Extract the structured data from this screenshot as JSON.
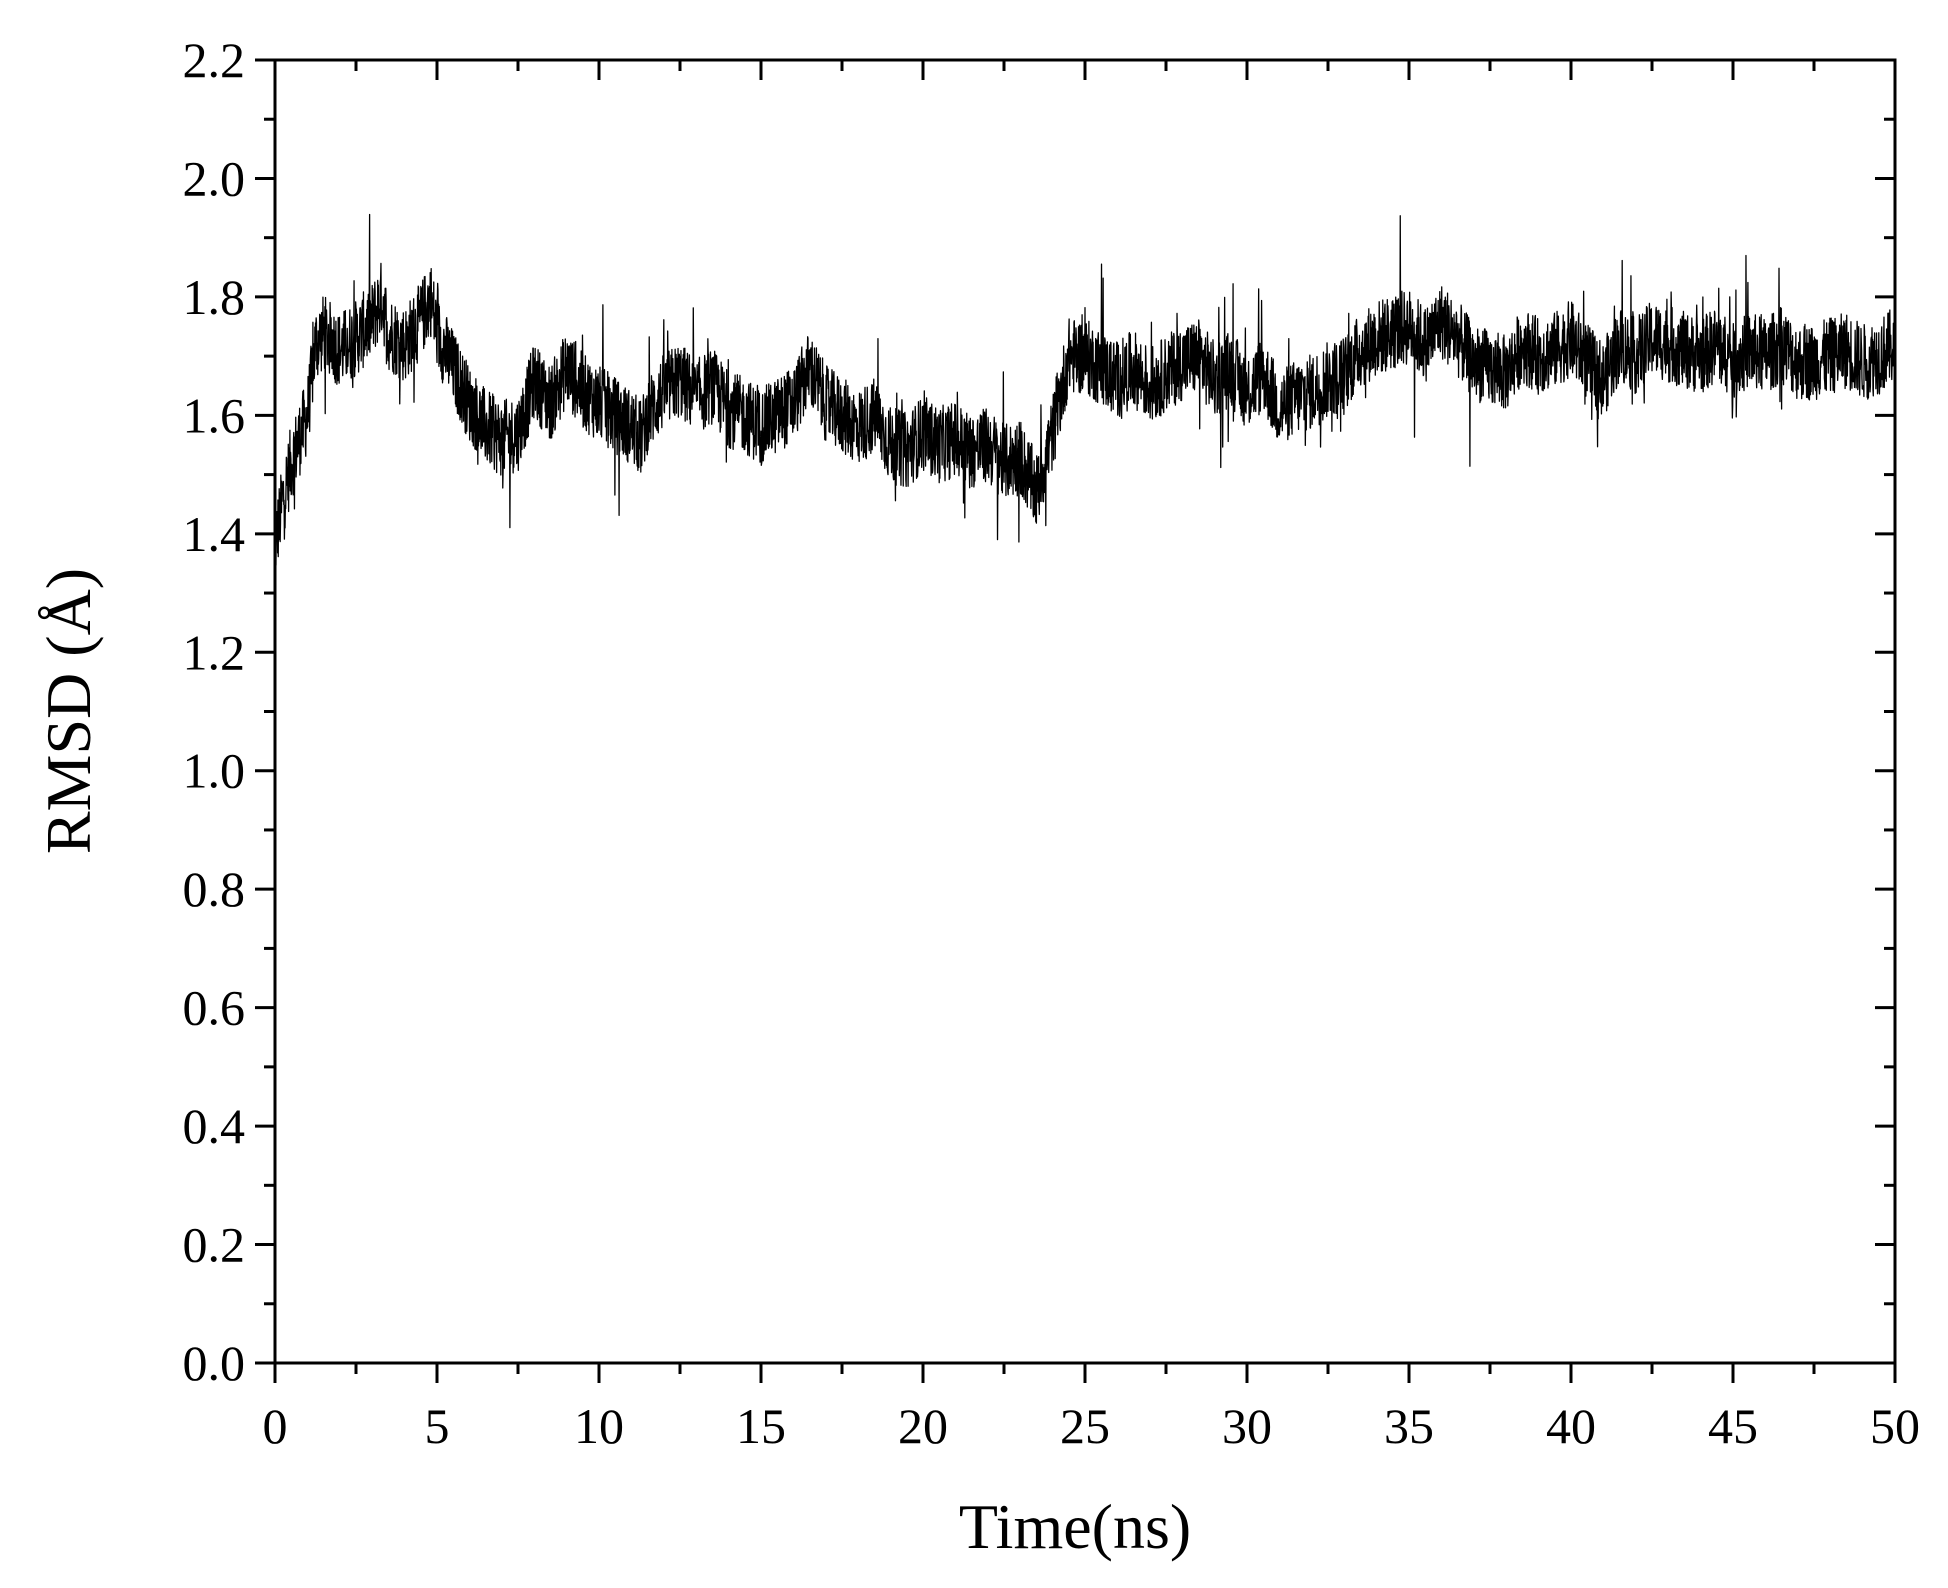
{
  "chart_data": {
    "type": "line",
    "xlabel": "Time(ns)",
    "ylabel": "RMSD (Å)",
    "xlim": [
      0,
      50
    ],
    "ylim": [
      0.0,
      2.2
    ],
    "x_ticks": [
      "0",
      "5",
      "10",
      "15",
      "20",
      "25",
      "30",
      "35",
      "40",
      "45",
      "50"
    ],
    "y_ticks": [
      "0.0",
      "0.2",
      "0.4",
      "0.6",
      "0.8",
      "1.0",
      "1.2",
      "1.4",
      "1.6",
      "1.8",
      "2.0",
      "2.2"
    ],
    "grid": false,
    "legend": "none",
    "colors": {
      "line": "#000000",
      "axes": "#000000",
      "background": "#ffffff"
    },
    "series": [
      {
        "x": [
          0,
          0.25,
          0.5,
          0.75,
          1.0,
          1.25,
          1.5,
          2.0,
          2.5,
          3.0,
          3.3,
          3.5,
          4.0,
          4.5,
          4.8,
          5.0,
          5.5,
          6.0,
          6.5,
          7.0,
          7.5,
          8.0,
          8.5,
          9.0,
          9.5,
          10.0,
          10.5,
          11.0,
          11.3,
          11.5,
          12.0,
          12.5,
          13.0,
          13.5,
          14.0,
          14.5,
          15.0,
          15.5,
          16.0,
          16.5,
          17.0,
          17.5,
          18.0,
          18.5,
          19.0,
          19.5,
          20.0,
          20.5,
          21.0,
          21.5,
          22.0,
          22.5,
          23.0,
          23.5,
          24.0,
          24.5,
          25.0,
          25.5,
          26.0,
          26.5,
          27.0,
          27.5,
          28.0,
          28.5,
          29.0,
          29.5,
          30.0,
          30.5,
          31.0,
          31.5,
          32.0,
          32.5,
          33.0,
          33.5,
          34.0,
          34.5,
          35.0,
          35.5,
          36.0,
          36.5,
          37.0,
          37.5,
          38.0,
          38.5,
          39.0,
          39.5,
          40.0,
          40.5,
          41.0,
          41.5,
          42.0,
          42.5,
          43.0,
          43.5,
          44.0,
          44.5,
          45.0,
          45.5,
          46.0,
          46.5,
          47.0,
          47.5,
          48.0,
          48.5,
          49.0,
          49.5,
          50.0
        ],
        "y": [
          1.38,
          1.46,
          1.52,
          1.56,
          1.6,
          1.72,
          1.74,
          1.71,
          1.73,
          1.76,
          1.8,
          1.74,
          1.72,
          1.76,
          1.8,
          1.74,
          1.68,
          1.62,
          1.58,
          1.56,
          1.57,
          1.66,
          1.62,
          1.68,
          1.64,
          1.62,
          1.6,
          1.58,
          1.56,
          1.6,
          1.64,
          1.66,
          1.63,
          1.65,
          1.61,
          1.6,
          1.58,
          1.6,
          1.62,
          1.68,
          1.62,
          1.6,
          1.58,
          1.6,
          1.55,
          1.54,
          1.57,
          1.55,
          1.56,
          1.54,
          1.55,
          1.52,
          1.53,
          1.47,
          1.57,
          1.7,
          1.7,
          1.68,
          1.66,
          1.68,
          1.65,
          1.67,
          1.69,
          1.7,
          1.66,
          1.68,
          1.64,
          1.67,
          1.61,
          1.63,
          1.64,
          1.66,
          1.67,
          1.71,
          1.73,
          1.74,
          1.75,
          1.72,
          1.76,
          1.73,
          1.69,
          1.68,
          1.67,
          1.72,
          1.7,
          1.71,
          1.73,
          1.69,
          1.66,
          1.72,
          1.7,
          1.73,
          1.72,
          1.71,
          1.7,
          1.72,
          1.69,
          1.71,
          1.7,
          1.72,
          1.69,
          1.69,
          1.7,
          1.71,
          1.69,
          1.7,
          1.72
        ]
      }
    ]
  }
}
